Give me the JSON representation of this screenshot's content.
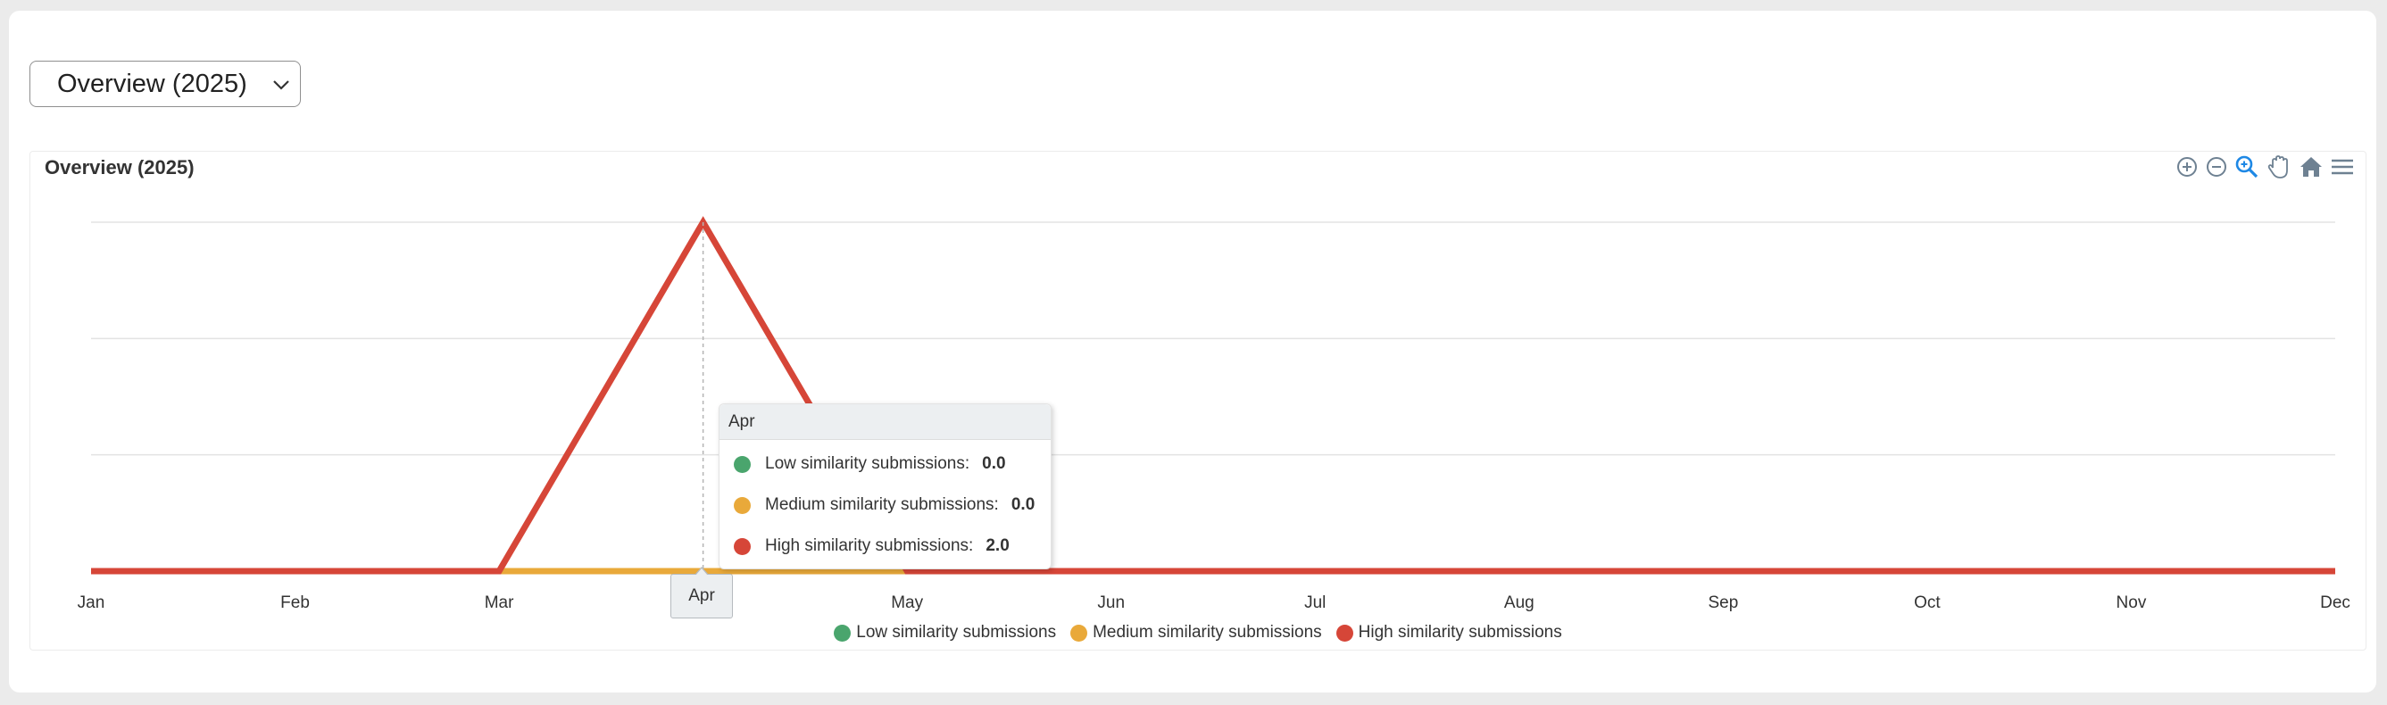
{
  "selector": {
    "value": "Overview (2025)"
  },
  "chart_title": "Overview (2025)",
  "toolbar": {
    "icons": [
      "zoom-in-icon",
      "zoom-out-icon",
      "selection-zoom-icon",
      "pan-icon",
      "reset-zoom-home-icon",
      "menu-icon"
    ]
  },
  "tooltip": {
    "header": "Apr",
    "rows": [
      {
        "label": "Low similarity submissions:",
        "value": "0.0"
      },
      {
        "label": "Medium similarity submissions:",
        "value": "0.0"
      },
      {
        "label": "High similarity submissions:",
        "value": "2.0"
      }
    ]
  },
  "xaxis_tooltip": "Apr",
  "colors": {
    "low": "#4aa56d",
    "medium": "#e9a93a",
    "high": "#d64638",
    "grid": "#e3e3e3",
    "accent": "#1e88e5"
  },
  "chart_data": {
    "type": "line",
    "title": "Overview (2025)",
    "categories": [
      "Jan",
      "Feb",
      "Mar",
      "Apr",
      "May",
      "Jun",
      "Jul",
      "Aug",
      "Sep",
      "Oct",
      "Nov",
      "Dec"
    ],
    "series": [
      {
        "name": "Low similarity submissions",
        "color": "#4aa56d",
        "values": [
          0,
          0,
          0,
          0,
          0,
          0,
          0,
          0,
          0,
          0,
          0,
          0
        ]
      },
      {
        "name": "Medium similarity submissions",
        "color": "#e9a93a",
        "values": [
          0,
          0,
          0,
          0,
          0,
          0,
          0,
          0,
          0,
          0,
          0,
          0
        ]
      },
      {
        "name": "High similarity submissions",
        "color": "#d64638",
        "values": [
          0,
          0,
          0,
          2,
          0,
          0,
          0,
          0,
          0,
          0,
          0,
          0
        ]
      }
    ],
    "ylim": [
      0,
      2
    ],
    "grid": true,
    "legend": "bottom-center",
    "xlabel": "",
    "ylabel": ""
  }
}
